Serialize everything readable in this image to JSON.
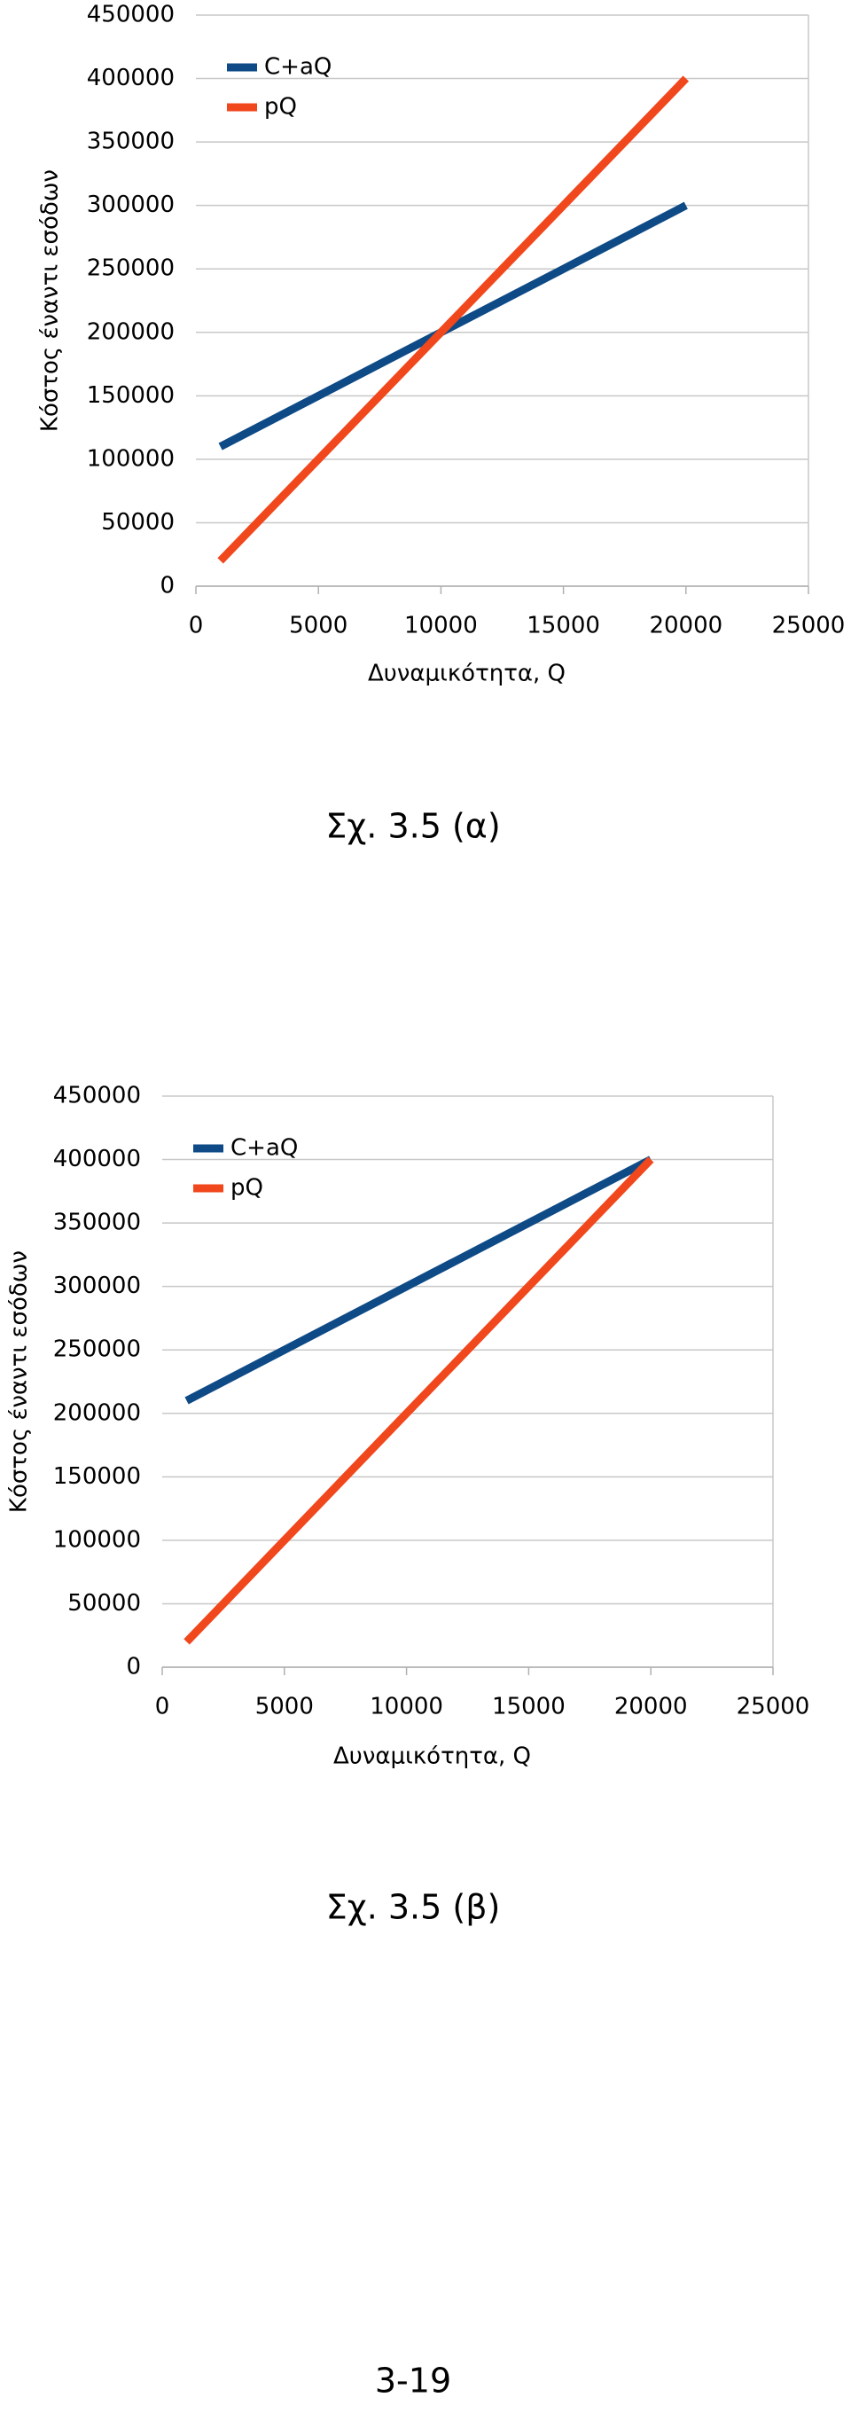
{
  "chart_data": [
    {
      "type": "line",
      "x": [
        1000,
        20000
      ],
      "series": [
        {
          "name": "C+aQ",
          "color": "#0e4a86",
          "values": [
            110000,
            300000
          ]
        },
        {
          "name": "pQ",
          "color": "#f1471d",
          "values": [
            20000,
            400000
          ]
        }
      ],
      "xlim": [
        0,
        25000
      ],
      "xticks": [
        0,
        5000,
        10000,
        15000,
        20000,
        25000
      ],
      "ylim": [
        0,
        450000
      ],
      "yticks": [
        0,
        50000,
        100000,
        150000,
        200000,
        250000,
        300000,
        350000,
        400000,
        450000
      ],
      "x_label": "Δυναμικότητα, Q",
      "y_label": "Κόστος έναντι εσόδων",
      "grid": true,
      "legend": "upper left",
      "caption": "Σχ. 3.5 (α)"
    },
    {
      "type": "line",
      "x": [
        1000,
        20000
      ],
      "series": [
        {
          "name": "C+aQ",
          "color": "#0e4a86",
          "values": [
            210000,
            400000
          ]
        },
        {
          "name": "pQ",
          "color": "#f1471d",
          "values": [
            20000,
            400000
          ]
        }
      ],
      "xlim": [
        0,
        25000
      ],
      "xticks": [
        0,
        5000,
        10000,
        15000,
        20000,
        25000
      ],
      "ylim": [
        0,
        450000
      ],
      "yticks": [
        0,
        50000,
        100000,
        150000,
        200000,
        250000,
        300000,
        350000,
        400000,
        450000
      ],
      "x_label": "Δυναμικότητα, Q",
      "y_label": "Κόστος έναντι εσόδων",
      "grid": true,
      "legend": "upper left",
      "caption": "Σχ. 3.5 (β)"
    }
  ],
  "page_number": "3-19"
}
